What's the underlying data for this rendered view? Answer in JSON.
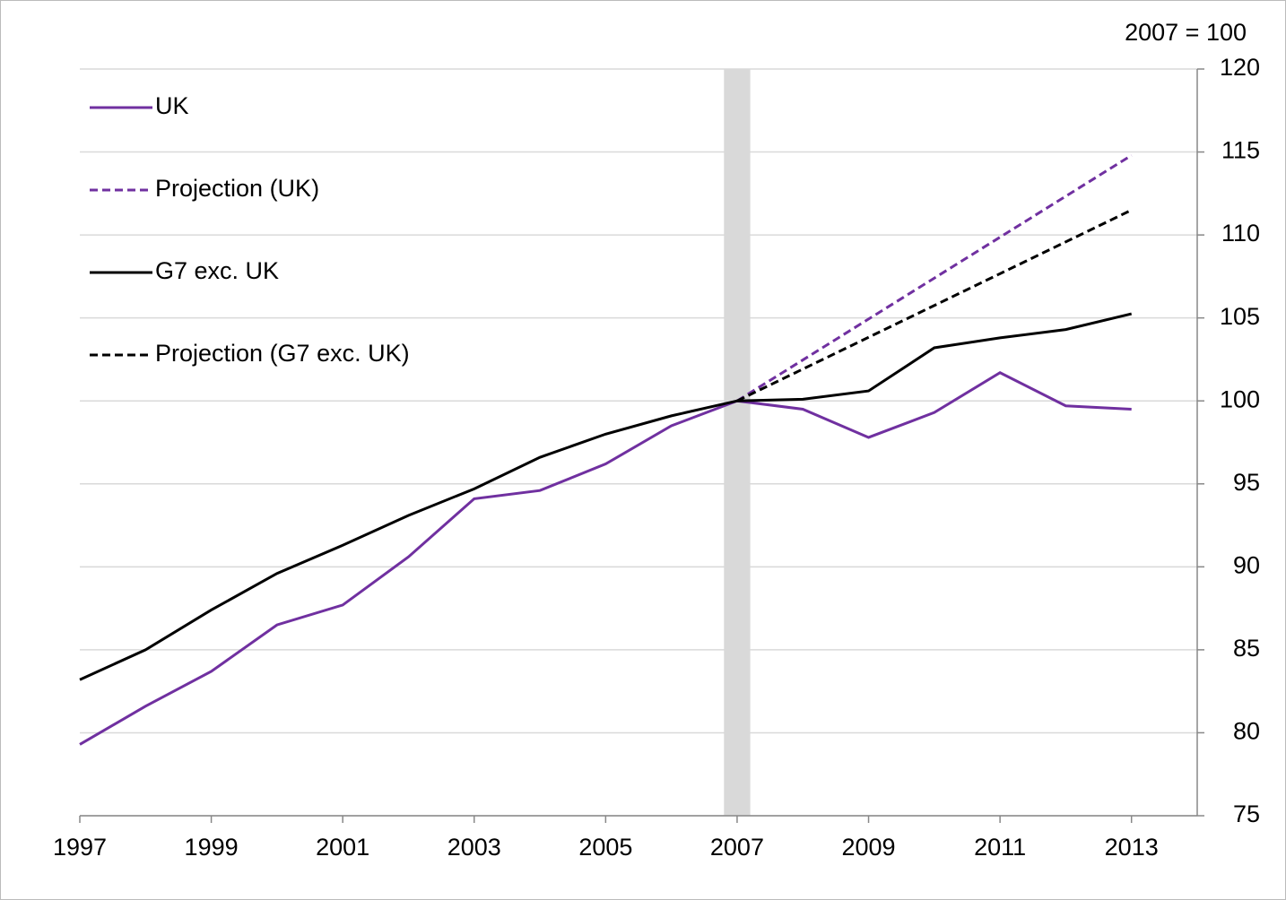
{
  "chart_data": {
    "type": "line",
    "annotation": "2007 = 100",
    "x": [
      1997,
      1998,
      1999,
      2000,
      2001,
      2002,
      2003,
      2004,
      2005,
      2006,
      2007,
      2008,
      2009,
      2010,
      2011,
      2012,
      2013
    ],
    "series": [
      {
        "name": "UK",
        "color": "#7030a0",
        "dash": false,
        "values": [
          79.3,
          81.6,
          83.7,
          86.5,
          87.7,
          90.6,
          94.1,
          94.6,
          96.2,
          98.5,
          100,
          99.5,
          97.8,
          99.3,
          101.7,
          99.7,
          99.5
        ]
      },
      {
        "name": "Projection (UK)",
        "color": "#7030a0",
        "dash": true,
        "x": [
          2007,
          2013
        ],
        "values": [
          100,
          114.8
        ]
      },
      {
        "name": "G7 exc. UK",
        "color": "#000000",
        "dash": false,
        "values": [
          83.2,
          85,
          87.4,
          89.6,
          91.3,
          93.1,
          94.7,
          96.6,
          98,
          99.1,
          100,
          100.1,
          100.6,
          103.2,
          103.8,
          104.3,
          105.25
        ]
      },
      {
        "name": "Projection (G7 exc. UK)",
        "color": "#000000",
        "dash": true,
        "x": [
          2007,
          2013
        ],
        "values": [
          100,
          111.5
        ]
      }
    ],
    "shade": [
      2006.8,
      2007.2
    ],
    "xlim": [
      1997,
      2014
    ],
    "xticks": [
      1997,
      1999,
      2001,
      2003,
      2005,
      2007,
      2009,
      2011,
      2013
    ],
    "ylim": [
      75,
      120
    ],
    "yticks": [
      75,
      80,
      85,
      90,
      95,
      100,
      105,
      110,
      115,
      120
    ],
    "grid": true,
    "legend": "upper left"
  }
}
